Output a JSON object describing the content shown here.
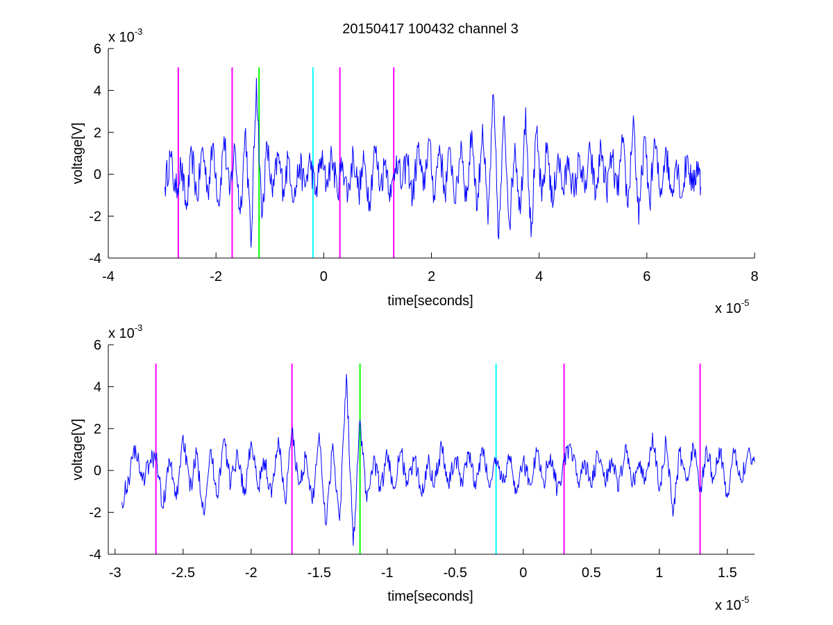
{
  "figure_title": "20150417 100432 channel 3",
  "chart_data": [
    {
      "type": "line",
      "title": "20150417 100432 channel 3",
      "xlabel": "time[seconds]",
      "ylabel": "voltage[V]",
      "x_exponent_label": "x 10",
      "x_exponent": "-5",
      "y_exponent_label": "x 10",
      "y_exponent": "-3",
      "xlim": [
        -4,
        8
      ],
      "ylim": [
        -4,
        6
      ],
      "xticks": [
        -4,
        -2,
        0,
        2,
        4,
        6,
        8
      ],
      "xtick_labels": [
        "-4",
        "-2",
        "0",
        "2",
        "4",
        "6",
        "8"
      ],
      "yticks": [
        -4,
        -2,
        0,
        2,
        4,
        6
      ],
      "ytick_labels": [
        "-4",
        "-2",
        "0",
        "2",
        "4",
        "6"
      ],
      "grid": false,
      "signal_color": "#0000ff",
      "signal_x_range": [
        -2.95,
        7.0
      ],
      "markers": [
        {
          "x": -2.7,
          "color": "#ff00ff"
        },
        {
          "x": -1.7,
          "color": "#ff00ff"
        },
        {
          "x": -1.2,
          "color": "#00ff00"
        },
        {
          "x": -0.2,
          "color": "#00ffff"
        },
        {
          "x": 0.3,
          "color": "#ff00ff"
        },
        {
          "x": 1.3,
          "color": "#ff00ff"
        }
      ],
      "marker_y_range": [
        -4,
        5.1
      ],
      "series": [
        {
          "color": "#0000ff",
          "x": [
            -2.95,
            -2.85,
            -2.75,
            -2.65,
            -2.55,
            -2.45,
            -2.35,
            -2.25,
            -2.15,
            -2.05,
            -1.95,
            -1.85,
            -1.75,
            -1.65,
            -1.55,
            -1.45,
            -1.35,
            -1.25,
            -1.15,
            -1.05,
            -0.95,
            -0.85,
            -0.75,
            -0.65,
            -0.55,
            -0.45,
            -0.35,
            -0.25,
            -0.15,
            -0.05,
            0.05,
            0.15,
            0.25,
            0.35,
            0.45,
            0.55,
            0.65,
            0.75,
            0.85,
            0.95,
            1.05,
            1.15,
            1.25,
            1.35,
            1.45,
            1.55,
            1.65,
            1.75,
            1.85,
            1.95,
            2.05,
            2.15,
            2.25,
            2.35,
            2.45,
            2.55,
            2.65,
            2.75,
            2.85,
            2.95,
            3.05,
            3.15,
            3.25,
            3.35,
            3.45,
            3.55,
            3.65,
            3.75,
            3.85,
            3.95,
            4.05,
            4.15,
            4.25,
            4.35,
            4.45,
            4.55,
            4.65,
            4.75,
            4.85,
            4.95,
            5.05,
            5.15,
            5.25,
            5.35,
            5.45,
            5.55,
            5.65,
            5.75,
            5.85,
            5.95,
            6.05,
            6.15,
            6.25,
            6.35,
            6.45,
            6.55,
            6.65,
            6.75,
            6.85,
            6.95,
            7.0
          ],
          "y": [
            -0.6,
            0.9,
            -0.9,
            0.4,
            -1.7,
            1.0,
            -1.2,
            1.3,
            -0.8,
            1.5,
            -1.5,
            1.8,
            -1.0,
            1.3,
            -1.9,
            2.2,
            -3.5,
            4.6,
            -2.1,
            1.4,
            -1.1,
            0.9,
            -0.7,
            0.8,
            -1.2,
            0.5,
            -0.6,
            0.7,
            -1.0,
            0.8,
            -0.5,
            0.9,
            -0.8,
            0.6,
            -1.0,
            1.0,
            -0.9,
            0.6,
            -1.3,
            1.3,
            -0.6,
            0.7,
            -1.1,
            0.9,
            -0.6,
            0.8,
            -1.2,
            1.3,
            -0.8,
            1.7,
            -1.0,
            1.4,
            -0.9,
            1.2,
            -1.4,
            1.6,
            -1.3,
            2.1,
            -1.7,
            2.4,
            -2.4,
            3.8,
            -3.1,
            2.8,
            -2.4,
            1.5,
            -1.9,
            3.2,
            -3.0,
            2.0,
            -1.3,
            1.5,
            -1.6,
            1.0,
            -0.9,
            0.8,
            -1.1,
            0.9,
            -0.9,
            1.1,
            -1.1,
            1.3,
            -0.8,
            0.9,
            -1.0,
            1.5,
            -1.6,
            2.8,
            -2.4,
            1.8,
            -1.3,
            1.6,
            -1.1,
            1.3,
            -0.9,
            0.7,
            -1.1,
            0.9,
            -0.7,
            0.6,
            -0.6
          ]
        }
      ]
    },
    {
      "type": "line",
      "title": "",
      "xlabel": "time[seconds]",
      "ylabel": "voltage[V]",
      "x_exponent_label": "x 10",
      "x_exponent": "-5",
      "y_exponent_label": "x 10",
      "y_exponent": "-3",
      "xlim": [
        -3.05,
        1.7
      ],
      "ylim": [
        -4,
        6
      ],
      "xticks": [
        -3,
        -2.5,
        -2,
        -1.5,
        -1,
        -0.5,
        0,
        0.5,
        1,
        1.5
      ],
      "xtick_labels": [
        "-3",
        "-2.5",
        "-2",
        "-1.5",
        "-1",
        "-0.5",
        "0",
        "0.5",
        "1",
        "1.5"
      ],
      "yticks": [
        -4,
        -2,
        0,
        2,
        4,
        6
      ],
      "ytick_labels": [
        "-4",
        "-2",
        "0",
        "2",
        "4",
        "6"
      ],
      "grid": false,
      "signal_color": "#0000ff",
      "signal_x_range": [
        -2.95,
        1.7
      ],
      "markers": [
        {
          "x": -2.7,
          "color": "#ff00ff"
        },
        {
          "x": -1.7,
          "color": "#ff00ff"
        },
        {
          "x": -1.2,
          "color": "#00ff00"
        },
        {
          "x": -0.2,
          "color": "#00ffff"
        },
        {
          "x": 0.3,
          "color": "#ff00ff"
        },
        {
          "x": 1.3,
          "color": "#ff00ff"
        }
      ],
      "marker_y_range": [
        -4,
        5.1
      ],
      "series": [
        {
          "color": "#0000ff",
          "x": [
            -2.95,
            -2.9,
            -2.85,
            -2.8,
            -2.75,
            -2.7,
            -2.65,
            -2.6,
            -2.55,
            -2.5,
            -2.45,
            -2.4,
            -2.35,
            -2.3,
            -2.25,
            -2.2,
            -2.15,
            -2.1,
            -2.05,
            -2.0,
            -1.95,
            -1.9,
            -1.85,
            -1.8,
            -1.75,
            -1.7,
            -1.65,
            -1.6,
            -1.55,
            -1.5,
            -1.45,
            -1.4,
            -1.35,
            -1.3,
            -1.25,
            -1.2,
            -1.15,
            -1.1,
            -1.05,
            -1.0,
            -0.95,
            -0.9,
            -0.85,
            -0.8,
            -0.75,
            -0.7,
            -0.65,
            -0.6,
            -0.55,
            -0.5,
            -0.45,
            -0.4,
            -0.35,
            -0.3,
            -0.25,
            -0.2,
            -0.15,
            -0.1,
            -0.05,
            0.0,
            0.05,
            0.1,
            0.15,
            0.2,
            0.25,
            0.3,
            0.35,
            0.4,
            0.45,
            0.5,
            0.55,
            0.6,
            0.65,
            0.7,
            0.75,
            0.8,
            0.85,
            0.9,
            0.95,
            1.0,
            1.05,
            1.1,
            1.15,
            1.2,
            1.25,
            1.3,
            1.35,
            1.4,
            1.45,
            1.5,
            1.55,
            1.6,
            1.65,
            1.7
          ],
          "y": [
            -1.5,
            -0.4,
            1.2,
            -0.5,
            0.3,
            0.8,
            -1.8,
            0.5,
            -1.4,
            1.7,
            -1.0,
            0.8,
            -2.0,
            1.0,
            -1.2,
            1.5,
            -0.7,
            0.9,
            -1.2,
            1.4,
            -0.9,
            0.5,
            -1.3,
            1.6,
            -1.5,
            1.9,
            -0.7,
            0.6,
            -1.6,
            1.8,
            -2.6,
            1.3,
            -2.4,
            4.6,
            -3.6,
            2.4,
            -1.5,
            0.6,
            -1.0,
            0.7,
            -0.8,
            0.9,
            -0.7,
            0.6,
            -1.1,
            0.4,
            -0.5,
            1.2,
            -0.7,
            0.6,
            -0.5,
            0.9,
            -0.9,
            1.1,
            -0.8,
            0.6,
            -0.6,
            0.7,
            -1.1,
            0.5,
            -0.7,
            0.9,
            -0.5,
            0.8,
            -0.9,
            0.4,
            1.1,
            -0.6,
            0.5,
            -0.8,
            0.8,
            -0.6,
            0.6,
            -1.0,
            1.2,
            -0.8,
            0.4,
            -0.5,
            1.8,
            -1.0,
            1.4,
            -2.2,
            0.9,
            -0.5,
            1.2,
            -1.0,
            0.9,
            -0.4,
            1.0,
            -1.3,
            0.8,
            -0.4,
            0.9,
            0.4
          ]
        }
      ]
    }
  ]
}
